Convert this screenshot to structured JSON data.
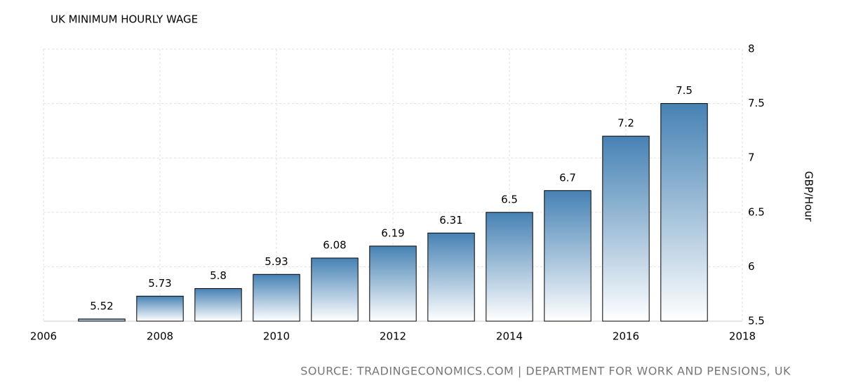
{
  "chart_data": {
    "type": "bar",
    "title": "UK MINIMUM HOURLY WAGE",
    "y_label": "GBP/Hour",
    "source": "SOURCE: TRADINGECONOMICS.COM | DEPARTMENT FOR WORK AND PENSIONS, UK",
    "x": [
      2007,
      2008,
      2009,
      2010,
      2011,
      2012,
      2013,
      2014,
      2015,
      2016,
      2017
    ],
    "values": [
      5.52,
      5.73,
      5.8,
      5.93,
      6.08,
      6.19,
      6.31,
      6.5,
      6.7,
      7.2,
      7.5
    ],
    "color": "#4682b4",
    "xlim": [
      2006,
      2018
    ],
    "xticks": [
      2006,
      2008,
      2010,
      2012,
      2014,
      2016,
      2018
    ],
    "ylim": [
      5.5,
      8
    ],
    "yticks": [
      5.5,
      6,
      6.5,
      7,
      7.5,
      8
    ],
    "grid": true
  }
}
